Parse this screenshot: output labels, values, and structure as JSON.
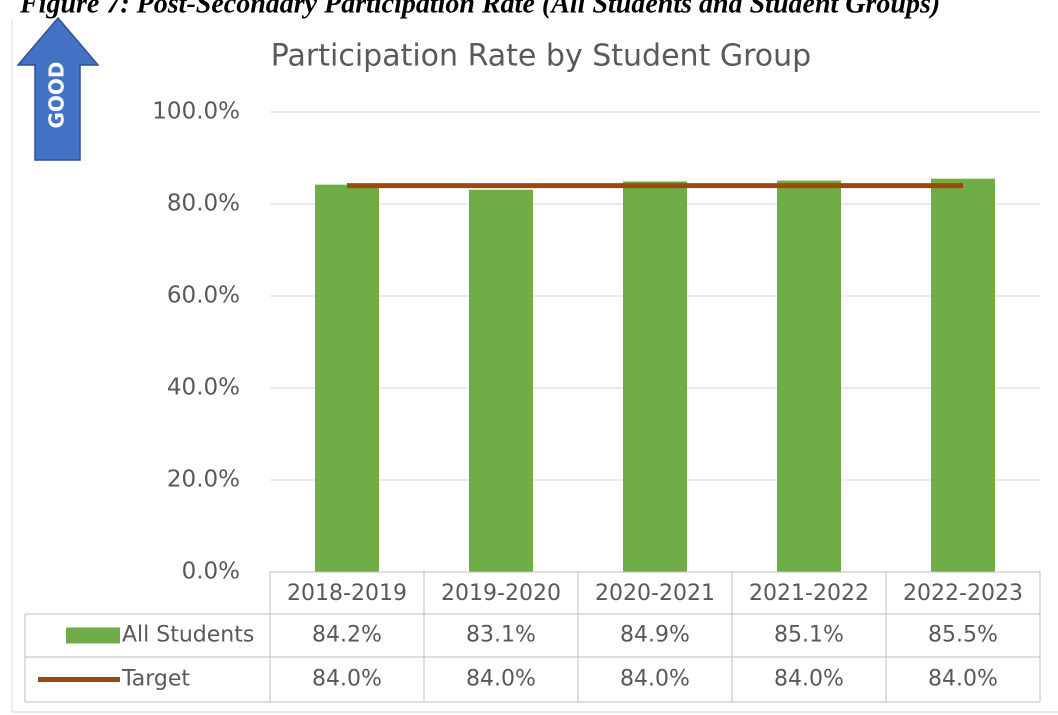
{
  "caption": "Figure 7: Post-Secondary Participation Rate (All Students and Student Groups)",
  "badge": "GOOD",
  "chart_data": {
    "type": "bar",
    "title": "Participation Rate by Student Group",
    "categories": [
      "2018-2019",
      "2019-2020",
      "2020-2021",
      "2021-2022",
      "2022-2023"
    ],
    "series": [
      {
        "name": "All Students",
        "type": "bar",
        "color": "#70ad47",
        "values": [
          84.2,
          83.1,
          84.9,
          85.1,
          85.5
        ],
        "value_labels": [
          "84.2%",
          "83.1%",
          "84.9%",
          "85.1%",
          "85.5%"
        ]
      },
      {
        "name": "Target",
        "type": "line",
        "color": "#9e480e",
        "values": [
          84.0,
          84.0,
          84.0,
          84.0,
          84.0
        ],
        "value_labels": [
          "84.0%",
          "84.0%",
          "84.0%",
          "84.0%",
          "84.0%"
        ]
      }
    ],
    "ylim": [
      0,
      100
    ],
    "yticks": [
      {
        "value": 0,
        "label": "0.0%"
      },
      {
        "value": 20,
        "label": "20.0%"
      },
      {
        "value": 40,
        "label": "40.0%"
      },
      {
        "value": 60,
        "label": "60.0%"
      },
      {
        "value": 80,
        "label": "80.0%"
      },
      {
        "value": 100,
        "label": "100.0%"
      }
    ],
    "grid": true,
    "data_table": true
  }
}
